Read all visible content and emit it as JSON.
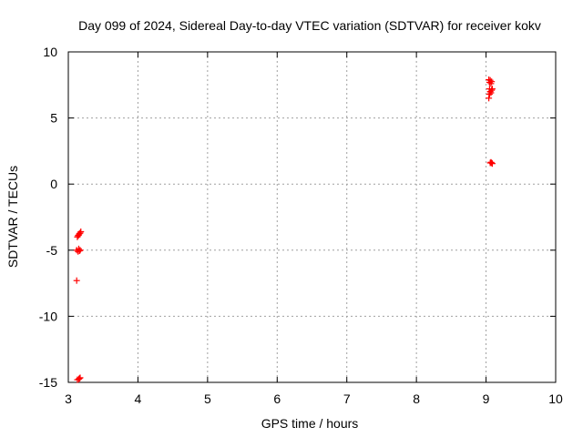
{
  "chart_data": {
    "type": "scatter",
    "title": "Day 099 of 2024, Sidereal Day-to-day VTEC variation (SDTVAR) for receiver kokv",
    "xlabel": "GPS time / hours",
    "ylabel": "SDTVAR / TECUs",
    "xlim": [
      3,
      10
    ],
    "ylim": [
      -15,
      10
    ],
    "xticks": [
      "3",
      "4",
      "5",
      "6",
      "7",
      "8",
      "9",
      "10"
    ],
    "yticks": [
      "-15",
      "-10",
      "-5",
      "0",
      "5",
      "10"
    ],
    "grid": true,
    "marker": "plus",
    "color": "#ff0000",
    "points": [
      {
        "x": 3.12,
        "y": -7.3
      },
      {
        "x": 3.12,
        "y": -5.0
      },
      {
        "x": 3.14,
        "y": -5.1
      },
      {
        "x": 3.15,
        "y": -4.9
      },
      {
        "x": 3.16,
        "y": -5.05
      },
      {
        "x": 3.17,
        "y": -5.0
      },
      {
        "x": 3.13,
        "y": -4.0
      },
      {
        "x": 3.14,
        "y": -3.9
      },
      {
        "x": 3.15,
        "y": -3.85
      },
      {
        "x": 3.16,
        "y": -3.75
      },
      {
        "x": 3.17,
        "y": -3.7
      },
      {
        "x": 3.18,
        "y": -3.6
      },
      {
        "x": 3.13,
        "y": -14.8
      },
      {
        "x": 3.15,
        "y": -14.75
      },
      {
        "x": 3.16,
        "y": -14.7
      },
      {
        "x": 3.17,
        "y": -14.65
      },
      {
        "x": 9.04,
        "y": 7.9
      },
      {
        "x": 9.05,
        "y": 7.7
      },
      {
        "x": 9.06,
        "y": 7.85
      },
      {
        "x": 9.07,
        "y": 7.6
      },
      {
        "x": 9.08,
        "y": 7.75
      },
      {
        "x": 9.05,
        "y": 7.2
      },
      {
        "x": 9.06,
        "y": 7.0
      },
      {
        "x": 9.07,
        "y": 6.9
      },
      {
        "x": 9.08,
        "y": 7.1
      },
      {
        "x": 9.09,
        "y": 7.2
      },
      {
        "x": 9.05,
        "y": 6.8
      },
      {
        "x": 9.04,
        "y": 6.5
      },
      {
        "x": 9.06,
        "y": 1.6
      },
      {
        "x": 9.07,
        "y": 1.65
      },
      {
        "x": 9.08,
        "y": 1.6
      },
      {
        "x": 9.09,
        "y": 1.55
      }
    ]
  }
}
